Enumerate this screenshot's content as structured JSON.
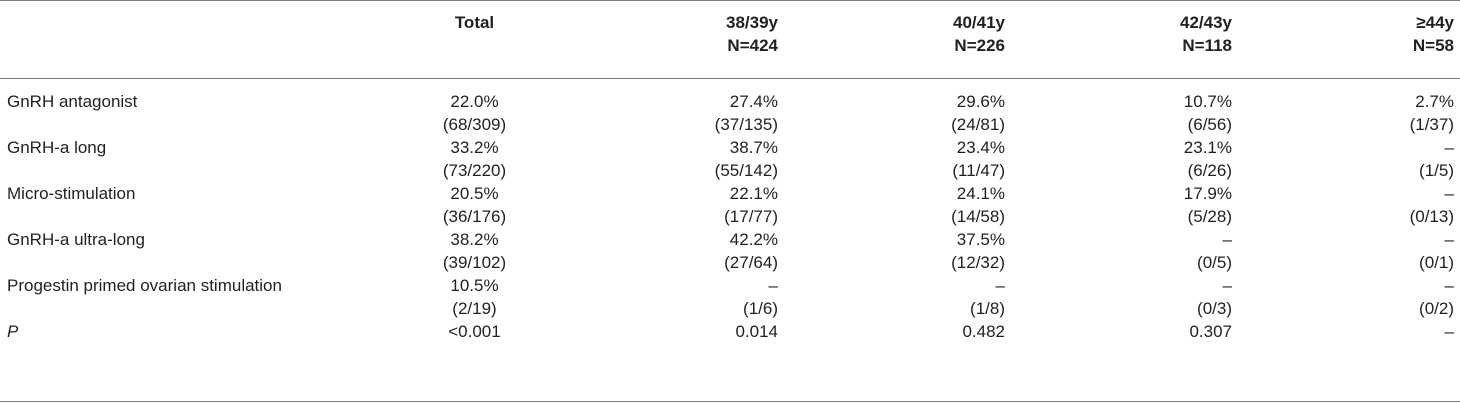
{
  "columns": [
    {
      "line1": "",
      "line2": ""
    },
    {
      "line1": "Total",
      "line2": ""
    },
    {
      "line1": "38/39y",
      "line2": "N=424"
    },
    {
      "line1": "40/41y",
      "line2": "N=226"
    },
    {
      "line1": "42/43y",
      "line2": "N=118"
    },
    {
      "line1": "≥44y",
      "line2": "N=58"
    }
  ],
  "rows": [
    {
      "label": "GnRH antagonist",
      "pct": [
        "22.0%",
        "27.4%",
        "29.6%",
        "10.7%",
        "2.7%"
      ],
      "frac": [
        "(68/309)",
        "(37/135)",
        "(24/81)",
        "(6/56)",
        "(1/37)"
      ]
    },
    {
      "label": "GnRH-a long",
      "pct": [
        "33.2%",
        "38.7%",
        "23.4%",
        "23.1%",
        "–"
      ],
      "frac": [
        "(73/220)",
        "(55/142)",
        "(11/47)",
        "(6/26)",
        "(1/5)"
      ]
    },
    {
      "label": "Micro-stimulation",
      "pct": [
        "20.5%",
        "22.1%",
        "24.1%",
        "17.9%",
        "–"
      ],
      "frac": [
        "(36/176)",
        "(17/77)",
        "(14/58)",
        "(5/28)",
        "(0/13)"
      ]
    },
    {
      "label": "GnRH-a ultra-long",
      "pct": [
        "38.2%",
        "42.2%",
        "37.5%",
        "–",
        "–"
      ],
      "frac": [
        "(39/102)",
        "(27/64)",
        "(12/32)",
        "(0/5)",
        "(0/1)"
      ]
    },
    {
      "label": "Progestin primed ovarian stimulation",
      "pct": [
        "10.5%",
        "–",
        "–",
        "–",
        "–"
      ],
      "frac": [
        "(2/19)",
        "(1/6)",
        "(1/8)",
        "(0/3)",
        "(0/2)"
      ]
    }
  ],
  "pvalue": {
    "label": "P",
    "values": [
      "<0.001",
      "0.014",
      "0.482",
      "0.307",
      "–"
    ]
  }
}
